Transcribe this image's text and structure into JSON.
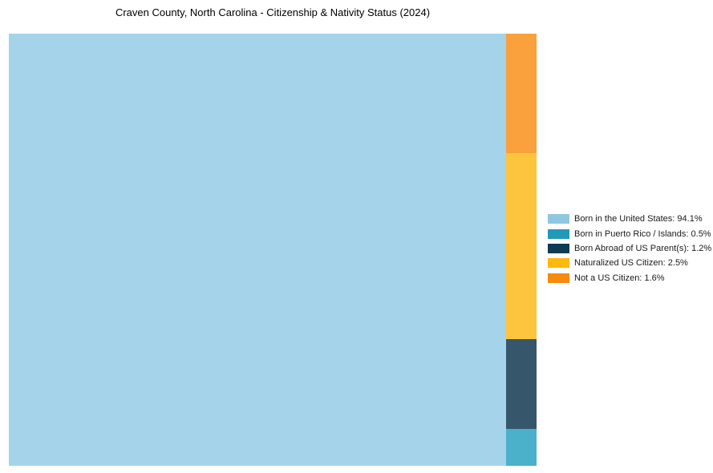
{
  "title": "Craven County, North Carolina - Citizenship & Nativity Status (2024)",
  "chart_data": {
    "type": "treemap",
    "title": "Craven County, North Carolina - Citizenship & Nativity Status (2024)",
    "legend_position": "right-center",
    "grid": false,
    "items": [
      {
        "label": "Born in the United States",
        "value": 94.1,
        "legend_label": "Born in the United States: 94.1%",
        "block_color": "#A5D3EA",
        "legend_color": "#8FC7E1"
      },
      {
        "label": "Born in Puerto Rico / Islands",
        "value": 0.5,
        "legend_label": "Born in Puerto Rico / Islands: 0.5%",
        "block_color": "#4BB0C9",
        "legend_color": "#2399B8"
      },
      {
        "label": "Born Abroad of US Parent(s)",
        "value": 1.2,
        "legend_label": "Born Abroad of US Parent(s): 1.2%",
        "block_color": "#35566B",
        "legend_color": "#0F3A54"
      },
      {
        "label": "Naturalized US Citizen",
        "value": 2.5,
        "legend_label": "Naturalized US Citizen: 2.5%",
        "block_color": "#FDC53D",
        "legend_color": "#FDB90D"
      },
      {
        "label": "Not a US Citizen",
        "value": 1.6,
        "legend_label": "Not a US Citizen: 1.6%",
        "block_color": "#FAA03C",
        "legend_color": "#F58A0D"
      }
    ]
  }
}
